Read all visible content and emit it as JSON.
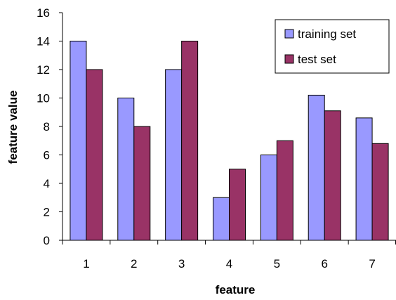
{
  "chart_data": {
    "type": "bar",
    "title": "",
    "xlabel": "feature",
    "ylabel": "feature value",
    "categories": [
      "1",
      "2",
      "3",
      "4",
      "5",
      "6",
      "7"
    ],
    "series": [
      {
        "name": "training set",
        "values": [
          14,
          10,
          12,
          3,
          6,
          10.2,
          8.6
        ],
        "color": "#9999ff"
      },
      {
        "name": "test set",
        "values": [
          12,
          8,
          14,
          5,
          7,
          9.1,
          6.8
        ],
        "color": "#993366"
      }
    ],
    "ylim": [
      0,
      16
    ],
    "yticks": [
      "0",
      "2",
      "4",
      "6",
      "8",
      "10",
      "12",
      "14",
      "16"
    ],
    "grid": false,
    "legend_position": "top-right"
  }
}
